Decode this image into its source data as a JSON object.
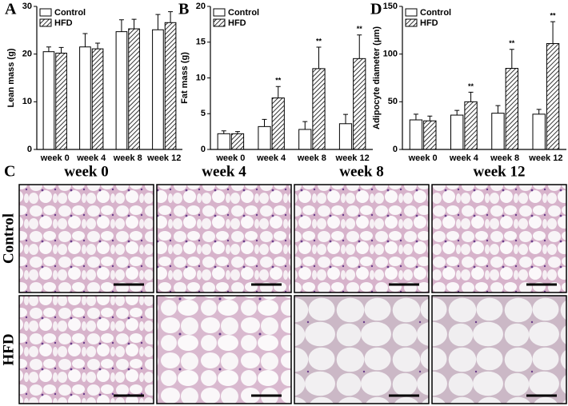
{
  "chart_data": [
    {
      "type": "bar",
      "panel": "A",
      "ylabel": "Lean mass (g)",
      "categories": [
        "week 0",
        "week 4",
        "week 8",
        "week 12"
      ],
      "ylim": [
        0,
        30
      ],
      "yticks": [
        0,
        10,
        20,
        30
      ],
      "legend": "upper left",
      "series": [
        {
          "name": "Control",
          "color": "#ffffff",
          "fill": "solid",
          "values": [
            20.5,
            21.5,
            24.7,
            25.1
          ],
          "errors": [
            1.0,
            2.8,
            2.5,
            3.2
          ]
        },
        {
          "name": "HFD",
          "color": "#ffffff",
          "fill": "hatched",
          "values": [
            20.2,
            21.1,
            25.3,
            26.6
          ],
          "errors": [
            1.2,
            1.2,
            2.0,
            2.3
          ]
        }
      ]
    },
    {
      "type": "bar",
      "panel": "B",
      "ylabel": "Fat mass (g)",
      "categories": [
        "week 0",
        "week 4",
        "week 8",
        "week 12"
      ],
      "ylim": [
        0,
        20
      ],
      "yticks": [
        0,
        5,
        10,
        15,
        20
      ],
      "legend": "upper left",
      "series": [
        {
          "name": "Control",
          "color": "#ffffff",
          "fill": "solid",
          "values": [
            2.2,
            3.2,
            2.8,
            3.6
          ],
          "errors": [
            0.4,
            1.0,
            1.1,
            1.3
          ]
        },
        {
          "name": "HFD",
          "color": "#ffffff",
          "fill": "hatched",
          "values": [
            2.2,
            7.2,
            11.3,
            12.7
          ],
          "errors": [
            0.3,
            1.6,
            3.0,
            3.3
          ],
          "annotations": [
            null,
            "**",
            "**",
            "**"
          ]
        }
      ]
    },
    {
      "type": "bar",
      "panel": "D",
      "ylabel": "Adipocyte diameter (μm)",
      "categories": [
        "week 0",
        "week 4",
        "week 8",
        "week 12"
      ],
      "ylim": [
        0,
        150
      ],
      "yticks": [
        0,
        50,
        100,
        150
      ],
      "legend": "upper left",
      "series": [
        {
          "name": "Control",
          "color": "#ffffff",
          "fill": "solid",
          "values": [
            31,
            36,
            38,
            37
          ],
          "errors": [
            6,
            5,
            8,
            5
          ]
        },
        {
          "name": "HFD",
          "color": "#ffffff",
          "fill": "hatched",
          "values": [
            30,
            50,
            85,
            111
          ],
          "errors": [
            5,
            10,
            20,
            23
          ],
          "annotations": [
            null,
            "**",
            "**",
            "**"
          ]
        }
      ]
    }
  ],
  "panel_c": {
    "label": "C",
    "columns": [
      "week 0",
      "week 4",
      "week 8",
      "week 12"
    ],
    "rows": [
      "Control",
      "HFD"
    ]
  }
}
